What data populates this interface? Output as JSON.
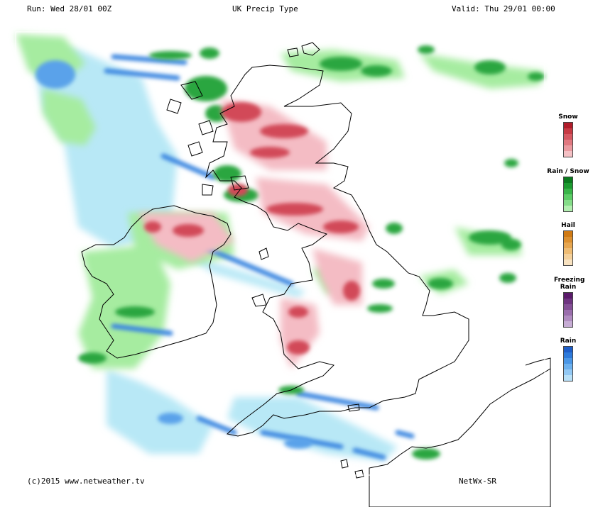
{
  "header": {
    "run": "Run: Wed 28/01 00Z",
    "title": "UK Precip Type",
    "valid": "Valid: Thu 29/01 00:00"
  },
  "legend": [
    {
      "label": "Snow",
      "colors": [
        "#b01c2a",
        "#c73a44",
        "#d65862",
        "#e07880",
        "#ea9aa0",
        "#f4c0c4"
      ]
    },
    {
      "label": "Rain / Snow",
      "colors": [
        "#0a7a1e",
        "#1c9a30",
        "#38b448",
        "#5ccc66",
        "#84dc88",
        "#b2eeb0"
      ]
    },
    {
      "label": "Hail",
      "colors": [
        "#d07a14",
        "#dc9030",
        "#e6a650",
        "#eebc74",
        "#f4d09a",
        "#f8e2c0"
      ]
    },
    {
      "label": "Freezing Rain",
      "colors": [
        "#5a1a6a",
        "#6e3480",
        "#845096",
        "#9a6eac",
        "#b08cc0",
        "#c6acd4"
      ]
    },
    {
      "label": "Rain",
      "colors": [
        "#1e5ec8",
        "#2e7ada",
        "#4a96e6",
        "#6cb0ee",
        "#92c8f4",
        "#b8e0f8"
      ]
    }
  ],
  "footer": {
    "copyright": "(c)2015 www.netweather.tv",
    "model": "NetWx-SR"
  }
}
